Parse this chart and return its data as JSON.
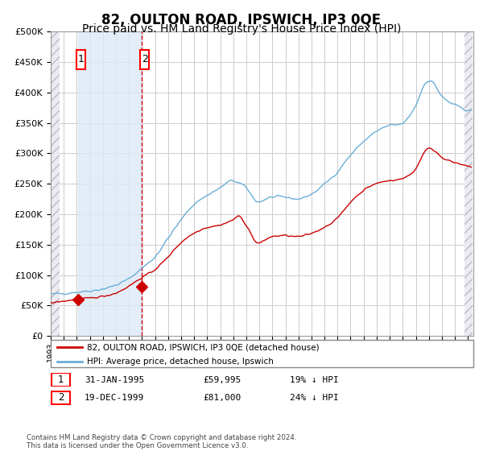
{
  "title": "82, OULTON ROAD, IPSWICH, IP3 0QE",
  "subtitle": "Price paid vs. HM Land Registry's House Price Index (HPI)",
  "legend1": "82, OULTON ROAD, IPSWICH, IP3 0QE (detached house)",
  "legend2": "HPI: Average price, detached house, Ipswich",
  "sale1_date": "31-JAN-1995",
  "sale1_price": 59995,
  "sale1_label": "19% ↓ HPI",
  "sale2_date": "19-DEC-1999",
  "sale2_price": 81000,
  "sale2_label": "24% ↓ HPI",
  "footer": "Contains HM Land Registry data © Crown copyright and database right 2024.\nThis data is licensed under the Open Government Licence v3.0.",
  "ylim": [
    0,
    500000
  ],
  "background_color": "#ffffff",
  "plot_bg_color": "#ffffff",
  "shade_color": "#dce9f5",
  "hpi_color": "#6aaed6",
  "price_color": "#cc0000",
  "grid_color": "#cccccc",
  "title_fontsize": 12,
  "subtitle_fontsize": 10
}
